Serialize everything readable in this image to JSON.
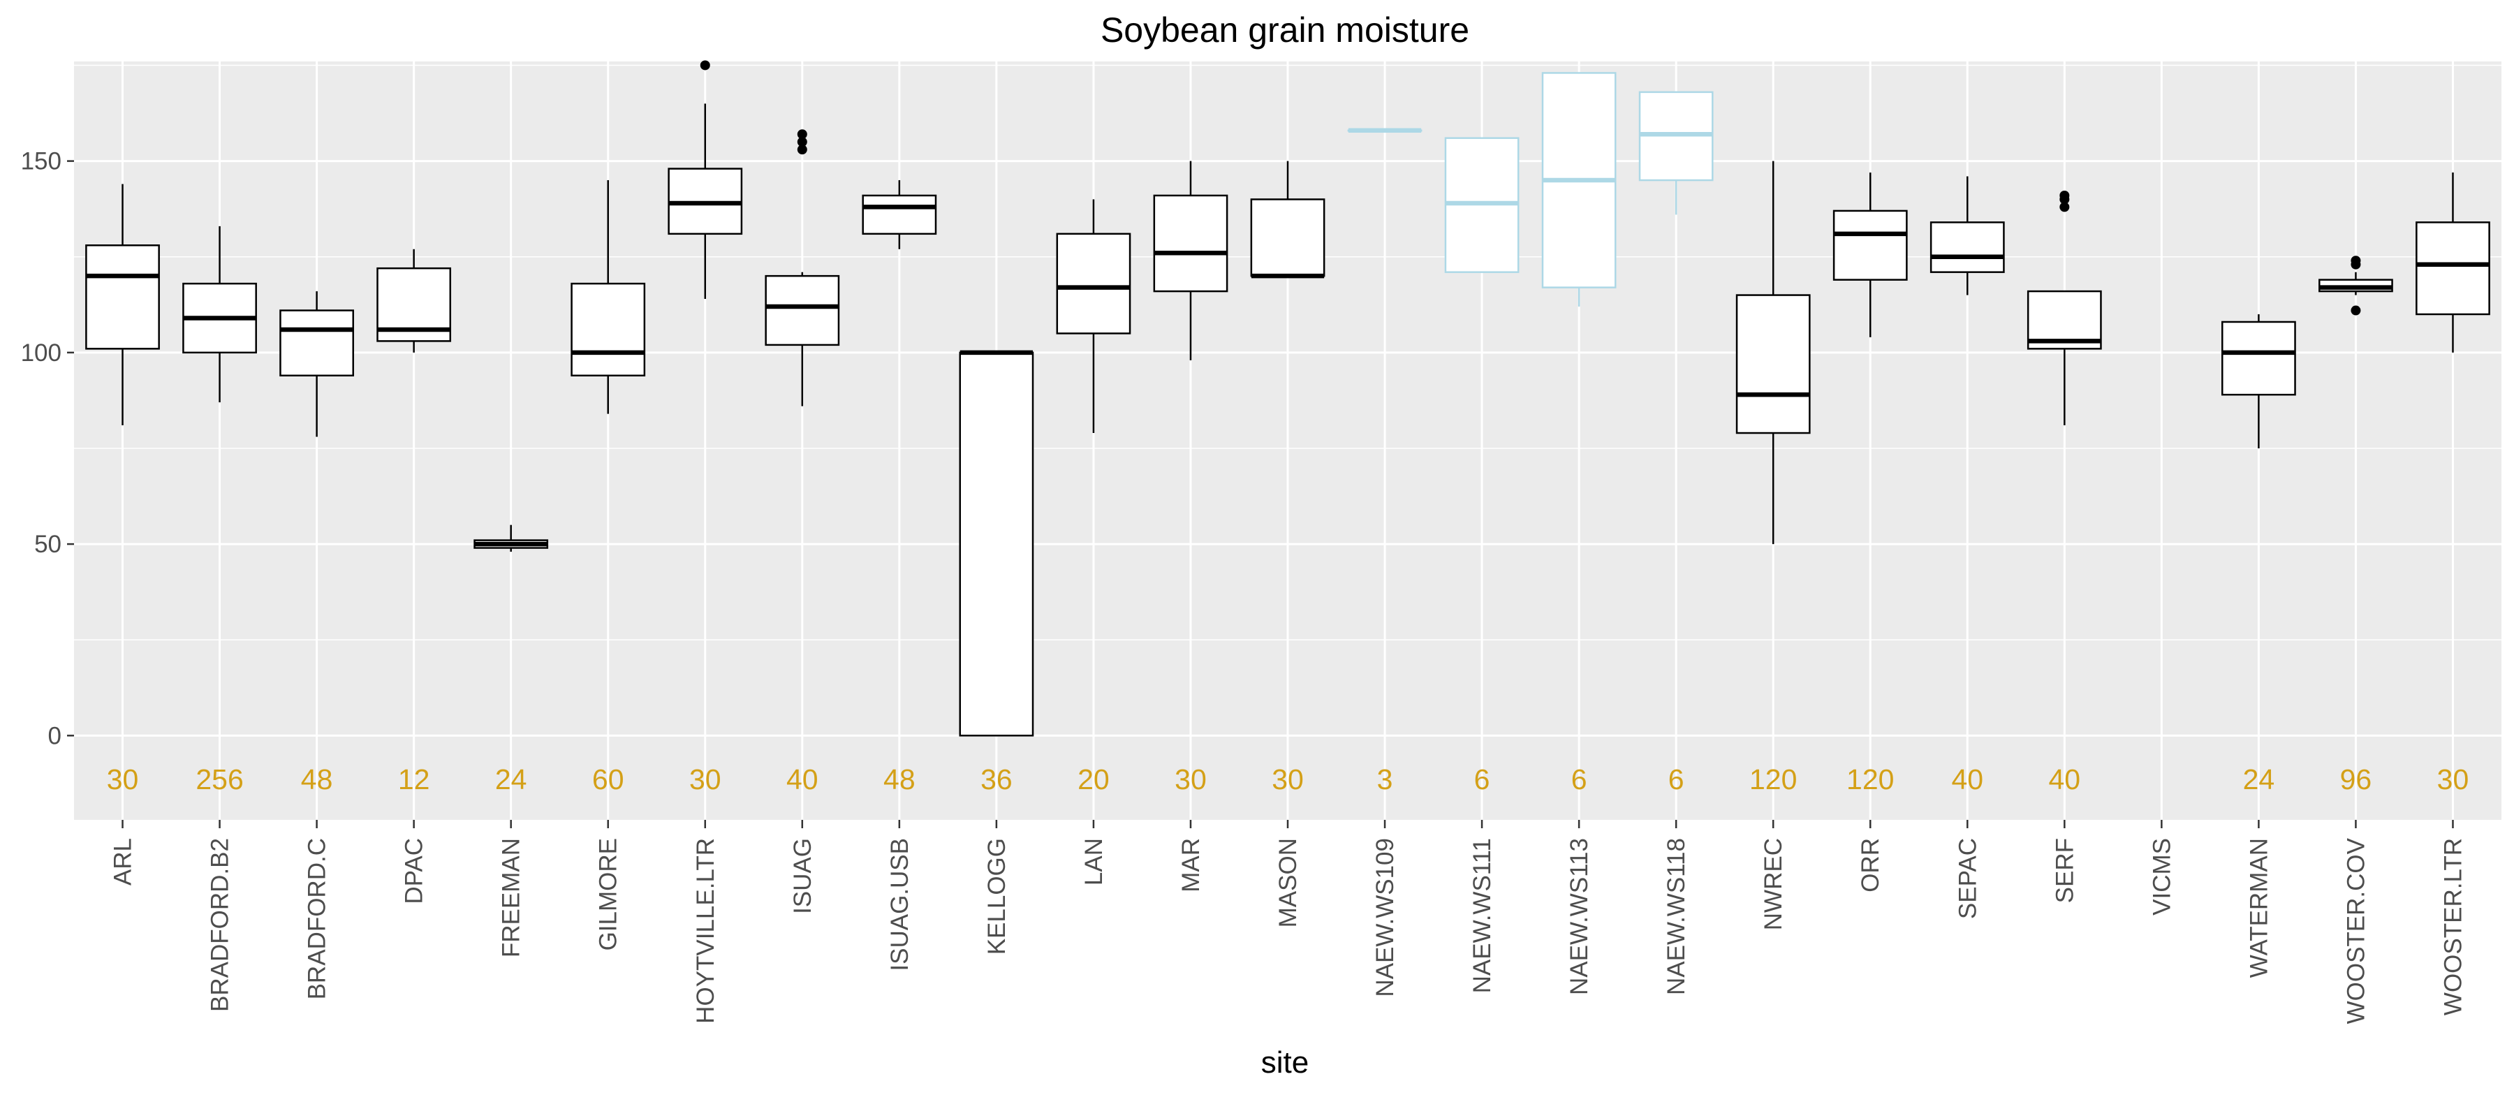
{
  "chart_data": {
    "type": "box",
    "title": "Soybean grain moisture",
    "xlabel": "site",
    "ylabel": "",
    "ylim": [
      -22,
      176
    ],
    "yticks": [
      0,
      50,
      100,
      150
    ],
    "grid": true,
    "legend": "none",
    "colors": {
      "panel": "#ebebeb",
      "grid": "#ffffff",
      "box_default": "#000000",
      "box_highlight": "#add8e6",
      "count_text": "#d4a017",
      "tick_text": "#4d4d4d"
    },
    "sites": [
      {
        "name": "ARL",
        "n": "30",
        "min": 81,
        "q1": 101,
        "median": 120,
        "q3": 128,
        "max": 144,
        "outliers": [],
        "color": "#000000"
      },
      {
        "name": "BRADFORD.B2",
        "n": "256",
        "min": 87,
        "q1": 100,
        "median": 109,
        "q3": 118,
        "max": 133,
        "outliers": [],
        "color": "#000000"
      },
      {
        "name": "BRADFORD.C",
        "n": "48",
        "min": 78,
        "q1": 94,
        "median": 106,
        "q3": 111,
        "max": 116,
        "outliers": [],
        "color": "#000000"
      },
      {
        "name": "DPAC",
        "n": "12",
        "min": 100,
        "q1": 103,
        "median": 106,
        "q3": 122,
        "max": 127,
        "outliers": [],
        "color": "#000000"
      },
      {
        "name": "FREEMAN",
        "n": "24",
        "min": 48,
        "q1": 49,
        "median": 50,
        "q3": 51,
        "max": 55,
        "outliers": [],
        "color": "#000000"
      },
      {
        "name": "GILMORE",
        "n": "60",
        "min": 84,
        "q1": 94,
        "median": 100,
        "q3": 118,
        "max": 145,
        "outliers": [],
        "color": "#000000"
      },
      {
        "name": "HOYTVILLE.LTR",
        "n": "30",
        "min": 114,
        "q1": 131,
        "median": 139,
        "q3": 148,
        "max": 165,
        "outliers": [
          175
        ],
        "color": "#000000"
      },
      {
        "name": "ISUAG",
        "n": "40",
        "min": 86,
        "q1": 102,
        "median": 112,
        "q3": 120,
        "max": 121,
        "outliers": [
          153,
          155,
          157
        ],
        "color": "#000000"
      },
      {
        "name": "ISUAG.USB",
        "n": "48",
        "min": 127,
        "q1": 131,
        "median": 138,
        "q3": 141,
        "max": 145,
        "outliers": [],
        "color": "#000000"
      },
      {
        "name": "KELLOGG",
        "n": "36",
        "min": 0,
        "q1": 0,
        "median": 100,
        "q3": 100,
        "max": 100,
        "outliers": [],
        "color": "#000000"
      },
      {
        "name": "LAN",
        "n": "20",
        "min": 79,
        "q1": 105,
        "median": 117,
        "q3": 131,
        "max": 140,
        "outliers": [],
        "color": "#000000"
      },
      {
        "name": "MAR",
        "n": "30",
        "min": 98,
        "q1": 116,
        "median": 126,
        "q3": 141,
        "max": 150,
        "outliers": [],
        "color": "#000000"
      },
      {
        "name": "MASON",
        "n": "30",
        "min": 120,
        "q1": 120,
        "median": 120,
        "q3": 140,
        "max": 150,
        "outliers": [],
        "color": "#000000"
      },
      {
        "name": "NAEW.WS109",
        "n": "3",
        "min": 158,
        "q1": 158,
        "median": 158,
        "q3": 158,
        "max": 158,
        "outliers": [],
        "color": "#add8e6"
      },
      {
        "name": "NAEW.WS111",
        "n": "6",
        "min": 121,
        "q1": 121,
        "median": 139,
        "q3": 156,
        "max": 156,
        "outliers": [],
        "color": "#add8e6"
      },
      {
        "name": "NAEW.WS113",
        "n": "6",
        "min": 112,
        "q1": 117,
        "median": 145,
        "q3": 173,
        "max": 173,
        "outliers": [],
        "color": "#add8e6"
      },
      {
        "name": "NAEW.WS118",
        "n": "6",
        "min": 136,
        "q1": 145,
        "median": 157,
        "q3": 168,
        "max": 168,
        "outliers": [],
        "color": "#add8e6"
      },
      {
        "name": "NWREC",
        "n": "120",
        "min": 50,
        "q1": 79,
        "median": 89,
        "q3": 115,
        "max": 150,
        "outliers": [],
        "color": "#000000"
      },
      {
        "name": "ORR",
        "n": "120",
        "min": 104,
        "q1": 119,
        "median": 131,
        "q3": 137,
        "max": 147,
        "outliers": [],
        "color": "#000000"
      },
      {
        "name": "SEPAC",
        "n": "40",
        "min": 115,
        "q1": 121,
        "median": 125,
        "q3": 134,
        "max": 146,
        "outliers": [],
        "color": "#000000"
      },
      {
        "name": "SERF",
        "n": "40",
        "min": 81,
        "q1": 101,
        "median": 103,
        "q3": 116,
        "max": 116,
        "outliers": [
          138,
          140,
          141
        ],
        "color": "#000000"
      },
      {
        "name": "VICMS",
        "n": "",
        "color": "#000000"
      },
      {
        "name": "WATERMAN",
        "n": "24",
        "min": 75,
        "q1": 89,
        "median": 100,
        "q3": 108,
        "max": 110,
        "outliers": [],
        "color": "#000000"
      },
      {
        "name": "WOOSTER.COV",
        "n": "96",
        "min": 115,
        "q1": 116,
        "median": 117,
        "q3": 119,
        "max": 121,
        "outliers": [
          111,
          123,
          124
        ],
        "color": "#000000"
      },
      {
        "name": "WOOSTER.LTR",
        "n": "30",
        "min": 100,
        "q1": 110,
        "median": 123,
        "q3": 134,
        "max": 147,
        "outliers": [],
        "color": "#000000"
      }
    ]
  }
}
